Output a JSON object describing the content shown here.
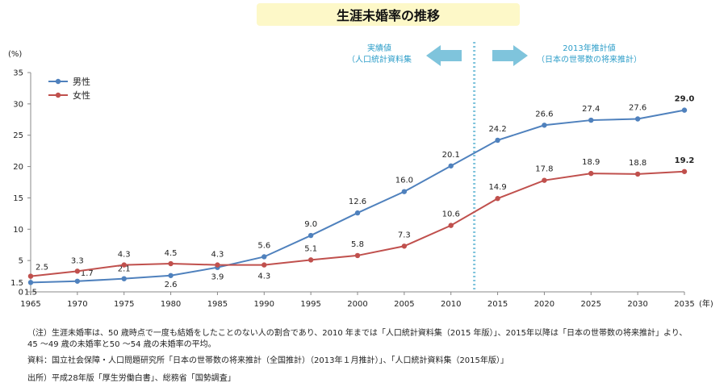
{
  "colors": {
    "male": "#4f81bd",
    "female": "#c0504d",
    "arrow": "#7fc4dc",
    "divider": "#7fc4dc",
    "annotation_text": "#2e9ec9",
    "title_bg": "#fdf8c8"
  },
  "chart_data": {
    "type": "line",
    "title": "生涯未婚率の推移",
    "ylabel": "(%)",
    "xlabel": "(年)",
    "ylim": [
      0,
      35
    ],
    "yticks": [
      0,
      5,
      10,
      15,
      20,
      25,
      30,
      35
    ],
    "extra_ytick_label": "1.5",
    "categories": [
      "1965",
      "1970",
      "1975",
      "1980",
      "1985",
      "1990",
      "1995",
      "2000",
      "2005",
      "2010",
      "2015",
      "2020",
      "2025",
      "2030",
      "2035"
    ],
    "series": [
      {
        "name": "男性",
        "color_key": "male",
        "values": [
          1.5,
          1.7,
          2.1,
          2.6,
          3.9,
          5.6,
          9.0,
          12.6,
          16.0,
          20.1,
          24.2,
          26.6,
          27.4,
          27.6,
          29.0
        ],
        "labels": [
          "1.5",
          "1.7",
          "2.1",
          "2.6",
          "3.9",
          "5.6",
          "9.0",
          "12.6",
          "16.0",
          "20.1",
          "24.2",
          "26.6",
          "27.4",
          "27.6",
          "29.0"
        ]
      },
      {
        "name": "女性",
        "color_key": "female",
        "values": [
          2.5,
          3.3,
          4.3,
          4.5,
          4.3,
          4.3,
          5.1,
          5.8,
          7.3,
          10.6,
          14.9,
          17.8,
          18.9,
          18.8,
          19.2
        ],
        "labels": [
          "2.5",
          "3.3",
          "4.3",
          "4.5",
          "4.3",
          "4.3",
          "5.1",
          "5.8",
          "7.3",
          "10.6",
          "14.9",
          "17.8",
          "18.9",
          "18.8",
          "19.2"
        ]
      }
    ],
    "legend_position": "top-left",
    "grid": false,
    "annotations": {
      "left_label_line1": "実績値",
      "left_label_line2": "（人口統計資料集",
      "right_label_line1": "2013年推計値",
      "right_label_line2": "（日本の世帯数の将来推計）"
    }
  },
  "notes": {
    "note_line1": "（注）生涯未婚率は、50 歳時点で一度も結婚をしたことのない人の割合であり、2010 年までは「人口統計資料集（2015 年版）」、2015年以降は「日本の世帯数の将来推計」より、",
    "note_line2": "45 ～49 歳の未婚率と50 ～54 歳の未婚率の平均。",
    "source": "資料：国立社会保障・人口問題研究所「日本の世帯数の将来推計（全国推計）（2013年１月推計）」、「人口統計資料集（2015年版）」",
    "origin": "出所）平成28年版「厚生労働白書」、総務省「国勢調査」"
  }
}
